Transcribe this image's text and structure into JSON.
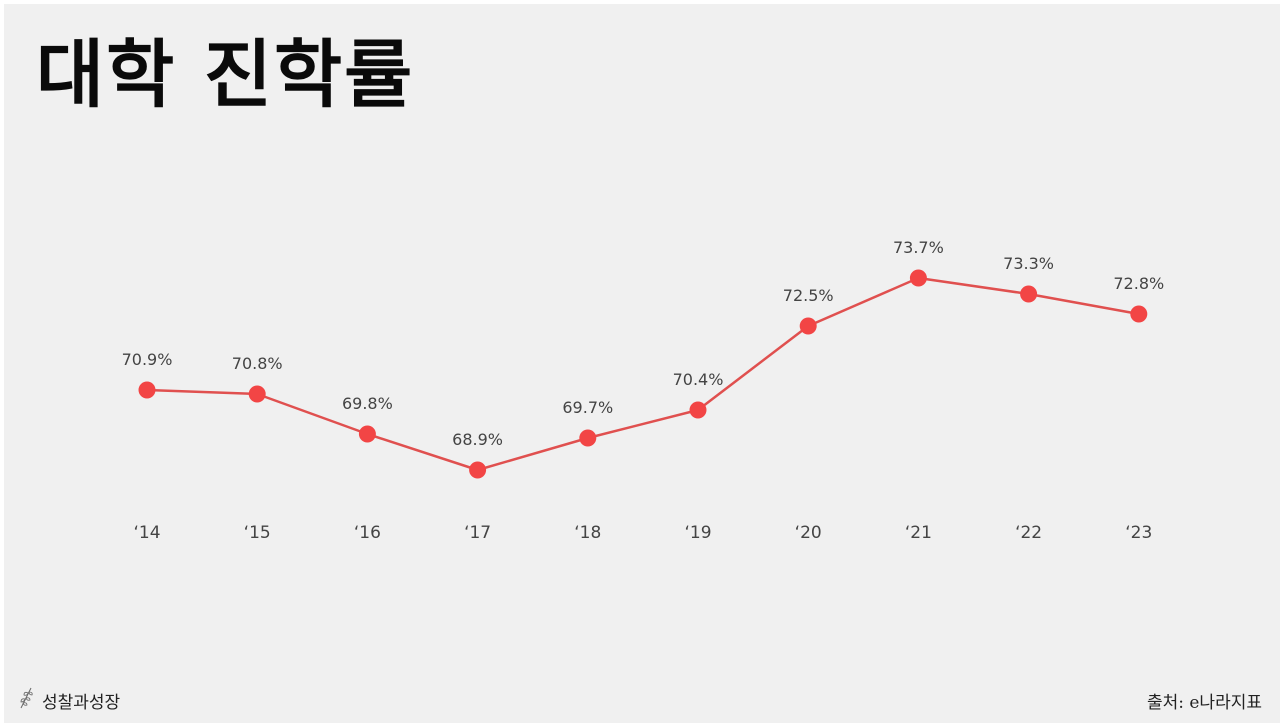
{
  "title": "대학 진학률",
  "brand": {
    "name": "성찰과성장",
    "icon": "leaf-sprig-icon"
  },
  "source": "출처: e나라지표",
  "colors": {
    "line": "#e0504f",
    "marker": "#f24545",
    "background": "#f0f0f0"
  },
  "chart_data": {
    "type": "line",
    "title": "대학 진학률",
    "categories": [
      "‘14",
      "‘15",
      "‘16",
      "‘17",
      "‘18",
      "‘19",
      "‘20",
      "‘21",
      "‘22",
      "‘23"
    ],
    "series": [
      {
        "values": [
          70.9,
          70.8,
          69.8,
          68.9,
          69.7,
          70.4,
          72.5,
          73.7,
          73.3,
          72.8
        ],
        "labels": [
          "70.9%",
          "70.8%",
          "69.8%",
          "68.9%",
          "69.7%",
          "70.4%",
          "72.5%",
          "73.7%",
          "73.3%",
          "72.8%"
        ]
      }
    ],
    "unit": "%",
    "ylim": [
      68.9,
      73.7
    ],
    "grid": false,
    "legend": "none",
    "xlabel": "",
    "ylabel": ""
  }
}
